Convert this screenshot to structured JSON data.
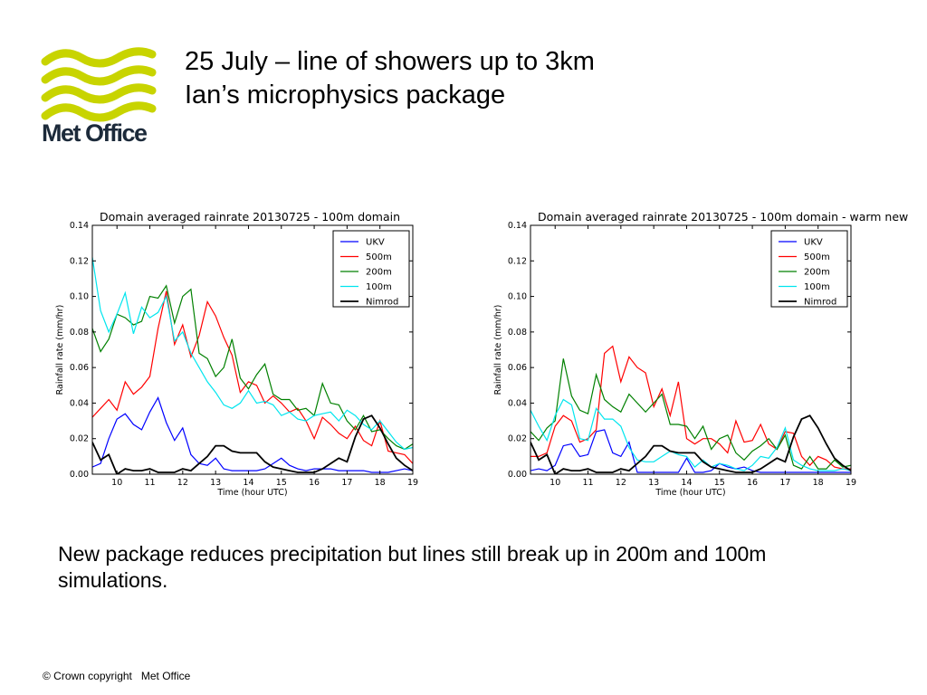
{
  "header": {
    "logo_text": "Met Office",
    "title_line1": "25 July – line of showers up to 3km",
    "title_line2": "Ian’s microphysics package"
  },
  "body_text": "New package reduces precipitation but lines still break up in 200m and 100m simulations.",
  "footer": "© Crown copyright   Met Office",
  "colors": {
    "logo": "#c8d400",
    "UKV": "#0000ff",
    "500m": "#ff0000",
    "200m": "#008000",
    "100m": "#00e5ee",
    "Nimrod": "#000000"
  },
  "chart_data": [
    {
      "type": "line",
      "title": "Domain averaged rainrate 20130725 - 100m domain",
      "xlabel": "Time (hour UTC)",
      "ylabel": "Rainfall rate (mm/hr)",
      "xlim": [
        9.25,
        19
      ],
      "ylim": [
        0,
        0.14
      ],
      "xticks": [
        10,
        11,
        12,
        13,
        14,
        15,
        16,
        17,
        18,
        19
      ],
      "xtick_labels": [
        "10",
        "11",
        "12",
        "13",
        "14",
        "15",
        "16",
        "17",
        "18",
        "19"
      ],
      "yticks": [
        0,
        0.02,
        0.04,
        0.06,
        0.08,
        0.1,
        0.12,
        0.14
      ],
      "ytick_labels": [
        "0.00",
        "0.02",
        "0.04",
        "0.06",
        "0.08",
        "0.10",
        "0.12",
        "0.14"
      ],
      "legend_position": "top-right",
      "grid": false,
      "series": [
        {
          "name": "UKV",
          "color": "#0000ff",
          "x": [
            9.25,
            9.5,
            9.75,
            10,
            10.25,
            10.5,
            10.75,
            11,
            11.25,
            11.5,
            11.75,
            12,
            12.25,
            12.5,
            12.75,
            13,
            13.25,
            13.5,
            13.75,
            14,
            14.25,
            14.5,
            14.75,
            15,
            15.25,
            15.5,
            15.75,
            16,
            16.25,
            16.5,
            16.75,
            17,
            17.25,
            17.5,
            17.75,
            18,
            18.25,
            18.5,
            18.75,
            19
          ],
          "y": [
            0.004,
            0.006,
            0.02,
            0.031,
            0.034,
            0.028,
            0.025,
            0.035,
            0.043,
            0.029,
            0.019,
            0.026,
            0.011,
            0.006,
            0.005,
            0.009,
            0.003,
            0.002,
            0.002,
            0.002,
            0.002,
            0.003,
            0.006,
            0.009,
            0.005,
            0.003,
            0.002,
            0.003,
            0.003,
            0.003,
            0.002,
            0.002,
            0.002,
            0.002,
            0.001,
            0.001,
            0.001,
            0.002,
            0.003,
            0.002
          ]
        },
        {
          "name": "500m",
          "color": "#ff0000",
          "x": [
            9.25,
            9.5,
            9.75,
            10,
            10.25,
            10.5,
            10.75,
            11,
            11.25,
            11.5,
            11.75,
            12,
            12.25,
            12.5,
            12.75,
            13,
            13.25,
            13.5,
            13.75,
            14,
            14.25,
            14.5,
            14.75,
            15,
            15.25,
            15.5,
            15.75,
            16,
            16.25,
            16.5,
            16.75,
            17,
            17.25,
            17.5,
            17.75,
            18,
            18.25,
            18.5,
            18.75,
            19
          ],
          "y": [
            0.032,
            0.037,
            0.042,
            0.036,
            0.052,
            0.045,
            0.049,
            0.055,
            0.082,
            0.103,
            0.073,
            0.084,
            0.066,
            0.078,
            0.097,
            0.089,
            0.077,
            0.067,
            0.046,
            0.052,
            0.05,
            0.04,
            0.044,
            0.04,
            0.035,
            0.037,
            0.03,
            0.02,
            0.032,
            0.028,
            0.023,
            0.02,
            0.027,
            0.019,
            0.016,
            0.03,
            0.013,
            0.012,
            0.011,
            0.006
          ]
        },
        {
          "name": "200m",
          "color": "#008000",
          "x": [
            9.25,
            9.5,
            9.75,
            10,
            10.25,
            10.5,
            10.75,
            11,
            11.25,
            11.5,
            11.75,
            12,
            12.25,
            12.5,
            12.75,
            13,
            13.25,
            13.5,
            13.75,
            14,
            14.25,
            14.5,
            14.75,
            15,
            15.25,
            15.5,
            15.75,
            16,
            16.25,
            16.5,
            16.75,
            17,
            17.25,
            17.5,
            17.75,
            18,
            18.25,
            18.5,
            18.75,
            19
          ],
          "y": [
            0.082,
            0.069,
            0.076,
            0.09,
            0.088,
            0.084,
            0.086,
            0.1,
            0.099,
            0.106,
            0.085,
            0.1,
            0.104,
            0.068,
            0.065,
            0.055,
            0.06,
            0.076,
            0.054,
            0.048,
            0.056,
            0.062,
            0.045,
            0.042,
            0.042,
            0.036,
            0.037,
            0.033,
            0.051,
            0.04,
            0.039,
            0.03,
            0.025,
            0.033,
            0.024,
            0.025,
            0.02,
            0.016,
            0.014,
            0.017
          ]
        },
        {
          "name": "100m",
          "color": "#00e5ee",
          "x": [
            9.25,
            9.5,
            9.75,
            10,
            10.25,
            10.5,
            10.75,
            11,
            11.25,
            11.5,
            11.75,
            12,
            12.25,
            12.5,
            12.75,
            13,
            13.25,
            13.5,
            13.75,
            14,
            14.25,
            14.5,
            14.75,
            15,
            15.25,
            15.5,
            15.75,
            16,
            16.25,
            16.5,
            16.75,
            17,
            17.25,
            17.5,
            17.75,
            18,
            18.25,
            18.5,
            18.75,
            19
          ],
          "y": [
            0.122,
            0.092,
            0.08,
            0.09,
            0.102,
            0.079,
            0.094,
            0.088,
            0.091,
            0.1,
            0.075,
            0.08,
            0.068,
            0.06,
            0.052,
            0.046,
            0.039,
            0.037,
            0.04,
            0.047,
            0.04,
            0.041,
            0.039,
            0.033,
            0.035,
            0.031,
            0.03,
            0.033,
            0.034,
            0.035,
            0.03,
            0.036,
            0.033,
            0.028,
            0.025,
            0.03,
            0.024,
            0.018,
            0.014,
            0.015
          ]
        },
        {
          "name": "Nimrod",
          "color": "#000000",
          "x": [
            9.25,
            9.5,
            9.75,
            10,
            10.25,
            10.5,
            10.75,
            11,
            11.25,
            11.5,
            11.75,
            12,
            12.25,
            12.5,
            12.75,
            13,
            13.25,
            13.5,
            13.75,
            14,
            14.25,
            14.5,
            14.75,
            15,
            15.25,
            15.5,
            15.75,
            16,
            16.25,
            16.5,
            16.75,
            17,
            17.25,
            17.5,
            17.75,
            18,
            18.25,
            18.5,
            18.75,
            19
          ],
          "y": [
            0.018,
            0.008,
            0.011,
            0.0,
            0.003,
            0.002,
            0.002,
            0.003,
            0.001,
            0.001,
            0.001,
            0.003,
            0.002,
            0.006,
            0.01,
            0.016,
            0.016,
            0.013,
            0.012,
            0.012,
            0.012,
            0.007,
            0.004,
            0.003,
            0.002,
            0.001,
            0.001,
            0.001,
            0.003,
            0.006,
            0.009,
            0.007,
            0.021,
            0.031,
            0.033,
            0.026,
            0.017,
            0.009,
            0.005,
            0.002
          ]
        }
      ]
    },
    {
      "type": "line",
      "title": "Domain averaged rainrate 20130725 - 100m domain - warm new",
      "xlabel": "Time (hour UTC)",
      "ylabel": "Rainfall rate (mm/hr)",
      "xlim": [
        9.25,
        19
      ],
      "ylim": [
        0,
        0.14
      ],
      "xticks": [
        10,
        11,
        12,
        13,
        14,
        15,
        16,
        17,
        18,
        19
      ],
      "xtick_labels": [
        "10",
        "11",
        "12",
        "13",
        "14",
        "15",
        "16",
        "17",
        "18",
        "19"
      ],
      "yticks": [
        0,
        0.02,
        0.04,
        0.06,
        0.08,
        0.1,
        0.12,
        0.14
      ],
      "ytick_labels": [
        "0.00",
        "0.02",
        "0.04",
        "0.06",
        "0.08",
        "0.10",
        "0.12",
        "0.14"
      ],
      "legend_position": "top-right",
      "grid": false,
      "series": [
        {
          "name": "UKV",
          "color": "#0000ff",
          "x": [
            9.25,
            9.5,
            9.75,
            10,
            10.25,
            10.5,
            10.75,
            11,
            11.25,
            11.5,
            11.75,
            12,
            12.25,
            12.5,
            12.75,
            13,
            13.25,
            13.5,
            13.75,
            14,
            14.25,
            14.5,
            14.75,
            15,
            15.25,
            15.5,
            15.75,
            16,
            16.25,
            16.5,
            16.75,
            17,
            17.25,
            17.5,
            17.75,
            18,
            18.25,
            18.5,
            18.75,
            19
          ],
          "y": [
            0.002,
            0.003,
            0.002,
            0.005,
            0.016,
            0.017,
            0.01,
            0.011,
            0.024,
            0.025,
            0.012,
            0.01,
            0.018,
            0.001,
            0.001,
            0.001,
            0.001,
            0.001,
            0.001,
            0.009,
            0.001,
            0.001,
            0.002,
            0.006,
            0.004,
            0.003,
            0.004,
            0.002,
            0.001,
            0.001,
            0.001,
            0.001,
            0.001,
            0.001,
            0.001,
            0.001,
            0.001,
            0.001,
            0.001,
            0.001
          ]
        },
        {
          "name": "500m",
          "color": "#ff0000",
          "x": [
            9.25,
            9.5,
            9.75,
            10,
            10.25,
            10.5,
            10.75,
            11,
            11.25,
            11.5,
            11.75,
            12,
            12.25,
            12.5,
            12.75,
            13,
            13.25,
            13.5,
            13.75,
            14,
            14.25,
            14.5,
            14.75,
            15,
            15.25,
            15.5,
            15.75,
            16,
            16.25,
            16.5,
            16.75,
            17,
            17.25,
            17.5,
            17.75,
            18,
            18.25,
            18.5,
            18.75,
            19
          ],
          "y": [
            0.01,
            0.01,
            0.012,
            0.027,
            0.033,
            0.03,
            0.018,
            0.02,
            0.025,
            0.068,
            0.072,
            0.052,
            0.066,
            0.06,
            0.057,
            0.038,
            0.048,
            0.033,
            0.052,
            0.02,
            0.017,
            0.02,
            0.02,
            0.017,
            0.012,
            0.03,
            0.018,
            0.019,
            0.028,
            0.017,
            0.014,
            0.024,
            0.023,
            0.01,
            0.005,
            0.01,
            0.008,
            0.004,
            0.003,
            0.003
          ]
        },
        {
          "name": "200m",
          "color": "#008000",
          "x": [
            9.25,
            9.5,
            9.75,
            10,
            10.25,
            10.5,
            10.75,
            11,
            11.25,
            11.5,
            11.75,
            12,
            12.25,
            12.5,
            12.75,
            13,
            13.25,
            13.5,
            13.75,
            14,
            14.25,
            14.5,
            14.75,
            15,
            15.25,
            15.5,
            15.75,
            16,
            16.25,
            16.5,
            16.75,
            17,
            17.25,
            17.5,
            17.75,
            18,
            18.25,
            18.5,
            18.75,
            19
          ],
          "y": [
            0.024,
            0.019,
            0.026,
            0.03,
            0.065,
            0.044,
            0.036,
            0.034,
            0.056,
            0.042,
            0.038,
            0.035,
            0.045,
            0.04,
            0.035,
            0.04,
            0.045,
            0.028,
            0.028,
            0.027,
            0.02,
            0.027,
            0.014,
            0.02,
            0.022,
            0.012,
            0.008,
            0.013,
            0.016,
            0.02,
            0.014,
            0.022,
            0.005,
            0.003,
            0.01,
            0.003,
            0.003,
            0.008,
            0.004,
            0.005
          ]
        },
        {
          "name": "100m",
          "color": "#00e5ee",
          "x": [
            9.25,
            9.5,
            9.75,
            10,
            10.25,
            10.5,
            10.75,
            11,
            11.25,
            11.5,
            11.75,
            12,
            12.25,
            12.5,
            12.75,
            13,
            13.25,
            13.5,
            13.75,
            14,
            14.25,
            14.5,
            14.75,
            15,
            15.25,
            15.5,
            15.75,
            16,
            16.25,
            16.5,
            16.75,
            17,
            17.25,
            17.5,
            17.75,
            18,
            18.25,
            18.5,
            18.75,
            19
          ],
          "y": [
            0.036,
            0.027,
            0.019,
            0.033,
            0.042,
            0.039,
            0.02,
            0.019,
            0.037,
            0.031,
            0.031,
            0.027,
            0.015,
            0.008,
            0.007,
            0.007,
            0.01,
            0.013,
            0.011,
            0.01,
            0.004,
            0.008,
            0.004,
            0.006,
            0.005,
            0.003,
            0.002,
            0.005,
            0.01,
            0.009,
            0.015,
            0.026,
            0.008,
            0.005,
            0.003,
            0.002,
            0.002,
            0.002,
            0.003,
            0.002
          ]
        },
        {
          "name": "Nimrod",
          "color": "#000000",
          "x": [
            9.25,
            9.5,
            9.75,
            10,
            10.25,
            10.5,
            10.75,
            11,
            11.25,
            11.5,
            11.75,
            12,
            12.25,
            12.5,
            12.75,
            13,
            13.25,
            13.5,
            13.75,
            14,
            14.25,
            14.5,
            14.75,
            15,
            15.25,
            15.5,
            15.75,
            16,
            16.25,
            16.5,
            16.75,
            17,
            17.25,
            17.5,
            17.75,
            18,
            18.25,
            18.5,
            18.75,
            19
          ],
          "y": [
            0.018,
            0.008,
            0.011,
            0.0,
            0.003,
            0.002,
            0.002,
            0.003,
            0.001,
            0.001,
            0.001,
            0.003,
            0.002,
            0.006,
            0.01,
            0.016,
            0.016,
            0.013,
            0.012,
            0.012,
            0.012,
            0.007,
            0.004,
            0.003,
            0.002,
            0.001,
            0.001,
            0.001,
            0.003,
            0.006,
            0.009,
            0.007,
            0.021,
            0.031,
            0.033,
            0.026,
            0.017,
            0.009,
            0.005,
            0.002
          ]
        }
      ]
    }
  ]
}
